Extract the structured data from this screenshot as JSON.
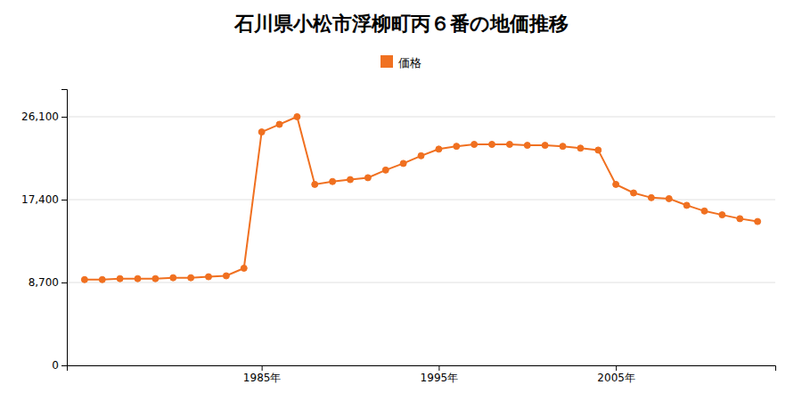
{
  "chart_data": {
    "type": "line",
    "title": "石川県小松市浮柳町丙６番の地価推移",
    "x": [
      1975,
      1976,
      1977,
      1978,
      1979,
      1980,
      1981,
      1982,
      1983,
      1984,
      1985,
      1986,
      1987,
      1988,
      1989,
      1990,
      1991,
      1992,
      1993,
      1994,
      1995,
      1996,
      1997,
      1998,
      1999,
      2000,
      2001,
      2002,
      2003,
      2004,
      2005,
      2006,
      2007,
      2008,
      2009,
      2010,
      2011,
      2012,
      2013
    ],
    "series": [
      {
        "name": "価格",
        "color": "#F07020",
        "marker": "circle",
        "values": [
          9000,
          9000,
          9100,
          9100,
          9100,
          9200,
          9200,
          9300,
          9400,
          10200,
          24500,
          25300,
          26100,
          19000,
          19300,
          19500,
          19700,
          20500,
          21200,
          22000,
          22700,
          23000,
          23200,
          23200,
          23200,
          23100,
          23100,
          23000,
          22800,
          22600,
          19000,
          18100,
          17600,
          17500,
          16800,
          16200,
          15800,
          15400,
          15100
        ]
      }
    ],
    "xlim": [
      1974,
      2014
    ],
    "xticks": [
      {
        "value": 1985,
        "label": "1985年"
      },
      {
        "value": 1995,
        "label": "1995年"
      },
      {
        "value": 2005,
        "label": "2005年"
      }
    ],
    "ylim": [
      0,
      29000
    ],
    "yticks": [
      0,
      {
        "value": 8700,
        "label": "8,700"
      },
      {
        "value": 17400,
        "label": "17,400"
      },
      {
        "value": 26100,
        "label": "26,100"
      }
    ],
    "grid": "y",
    "legend": "top"
  }
}
